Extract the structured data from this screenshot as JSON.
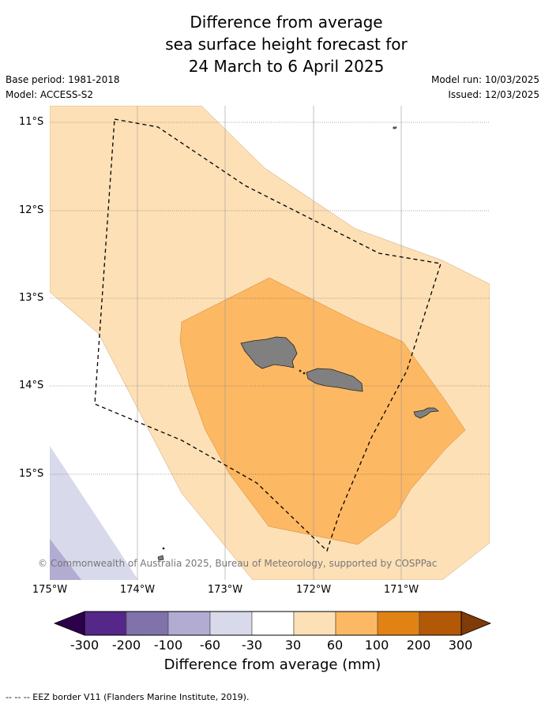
{
  "title": {
    "line1": "Difference from average",
    "line2": "sea surface height forecast for",
    "line3": "24 March to 6 April 2025"
  },
  "meta": {
    "base_period": "Base period: 1981-2018",
    "model": "Model: ACCESS-S2",
    "model_run": "Model run: 10/03/2025",
    "issued": "Issued: 12/03/2025"
  },
  "map": {
    "lat_labels": [
      "11°S",
      "12°S",
      "13°S",
      "14°S",
      "15°S"
    ],
    "lon_labels": [
      "175°W",
      "174°W",
      "173°W",
      "172°W",
      "171°W"
    ],
    "copyright": "© Commonwealth of Australia 2025, Bureau of Meteorology, supported by COSPPac",
    "land_color": "#808080"
  },
  "colorbar": {
    "ticks": [
      "-300",
      "-200",
      "-100",
      "-60",
      "-30",
      "30",
      "60",
      "100",
      "200",
      "300"
    ],
    "colors": [
      "#2d004b",
      "#542788",
      "#8073ac",
      "#b2abd2",
      "#d8daeb",
      "#ffffff",
      "#fee0b6",
      "#fdb863",
      "#e08214",
      "#b35806",
      "#7f3b08"
    ],
    "label": "Difference from average (mm)"
  },
  "footer": "-- -- -- EEZ border V11 (Flanders Marine Institute, 2019)."
}
